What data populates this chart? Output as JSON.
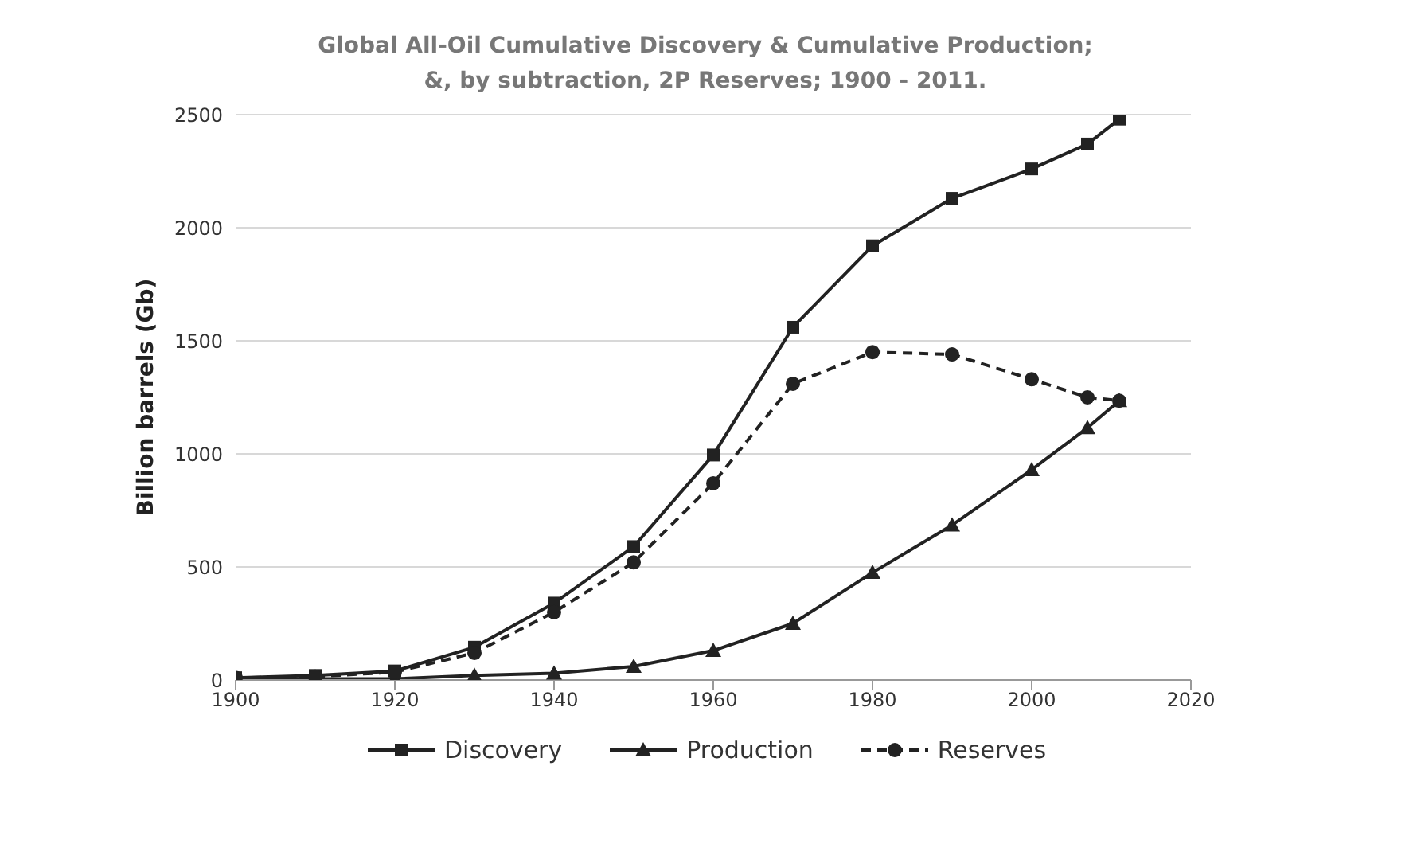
{
  "chart_data": {
    "type": "line",
    "title": "Global All-Oil Cumulative Discovery & Cumulative Production;\n&, by subtraction, 2P Reserves; 1900 - 2011.",
    "ylabel": "Billion barrels (Gb)",
    "x": [
      1900,
      1910,
      1920,
      1930,
      1940,
      1950,
      1960,
      1970,
      1980,
      1990,
      2000,
      2007,
      2011
    ],
    "series": [
      {
        "name": "Discovery",
        "color": "#222222",
        "marker": "square",
        "line_style": "solid",
        "values": [
          10,
          20,
          40,
          145,
          340,
          590,
          995,
          1560,
          1920,
          2130,
          2260,
          2370,
          2480
        ]
      },
      {
        "name": "Production",
        "color": "#222222",
        "marker": "triangle",
        "line_style": "solid",
        "values": [
          0,
          5,
          5,
          20,
          30,
          60,
          130,
          250,
          475,
          685,
          930,
          1115,
          1235
        ]
      },
      {
        "name": "Reserves",
        "color": "#222222",
        "marker": "circle",
        "line_style": "dashed",
        "values": [
          10,
          15,
          35,
          120,
          300,
          520,
          870,
          1310,
          1450,
          1440,
          1330,
          1250,
          1235
        ]
      }
    ],
    "xlim": [
      1900,
      2020
    ],
    "xticks": [
      1900,
      1920,
      1940,
      1960,
      1980,
      2000,
      2020
    ],
    "ylim": [
      0,
      2500
    ],
    "yticks": [
      0,
      500,
      1000,
      1500,
      2000,
      2500
    ],
    "grid": "y",
    "legend": "bottom"
  }
}
